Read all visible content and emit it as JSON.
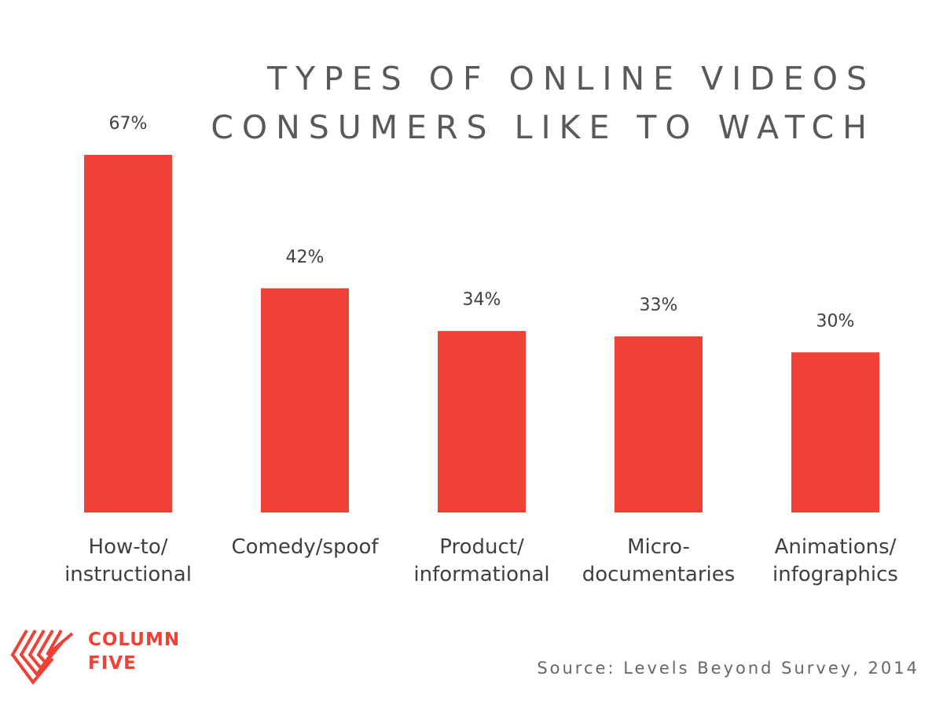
{
  "title": [
    "TYPES OF ONLINE VIDEOS",
    "CONSUMERS LIKE TO WATCH"
  ],
  "source": "Source: Levels Beyond Survey, 2014",
  "brand": {
    "lines": [
      "COLUMN",
      "FIVE"
    ],
    "logo_icon": "column-five-chevron-logo",
    "color": "#ef4136"
  },
  "chart_data": {
    "type": "bar",
    "categories": [
      [
        "How-to/",
        "instructional"
      ],
      [
        "Comedy/spoof"
      ],
      [
        "Product/",
        "informational"
      ],
      [
        "Micro-",
        "documentaries"
      ],
      [
        "Animations/",
        "infographics"
      ]
    ],
    "values": [
      67,
      42,
      34,
      33,
      30
    ],
    "value_labels": [
      "67%",
      "42%",
      "34%",
      "33%",
      "30%"
    ],
    "bar_color": "#ef4136",
    "grid": false,
    "legend": "none",
    "ylim": [
      0,
      67
    ]
  }
}
